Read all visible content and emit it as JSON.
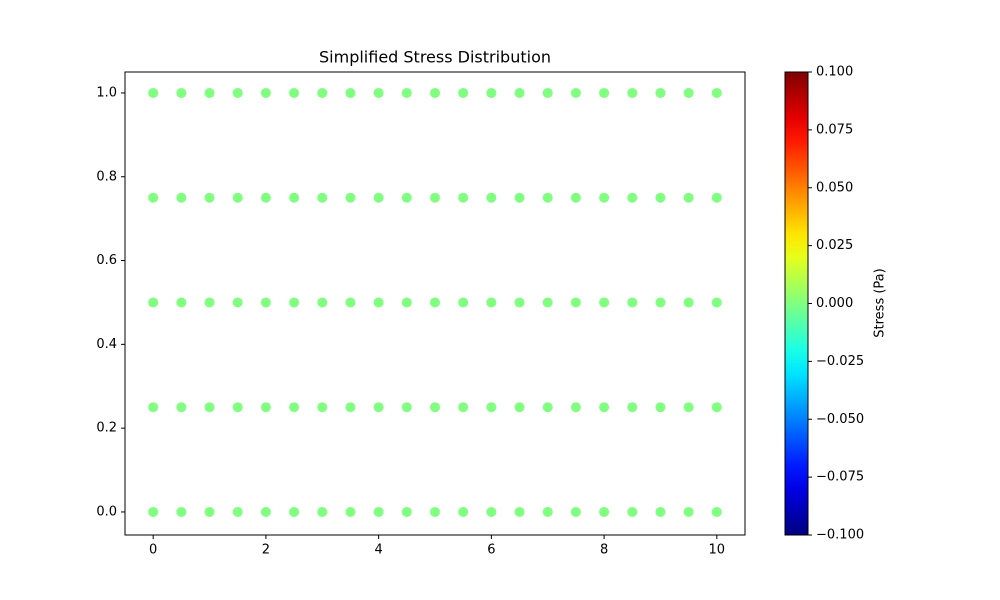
{
  "chart_data": {
    "type": "scatter",
    "title": "Simplified Stress Distribution",
    "colorbar_label": "Stress (Pa)",
    "colormap": "jet",
    "series": [
      {
        "x": [
          0,
          0.5,
          1,
          1.5,
          2,
          2.5,
          3,
          3.5,
          4,
          4.5,
          5,
          5.5,
          6,
          6.5,
          7,
          7.5,
          8,
          8.5,
          9,
          9.5,
          10
        ],
        "values": [
          0,
          0,
          0,
          0,
          0,
          0,
          0,
          0,
          0,
          0,
          0,
          0,
          0,
          0,
          0,
          0,
          0,
          0,
          0,
          0,
          0
        ],
        "c": [
          0,
          0,
          0,
          0,
          0,
          0,
          0,
          0,
          0,
          0,
          0,
          0,
          0,
          0,
          0,
          0,
          0,
          0,
          0,
          0,
          0
        ]
      },
      {
        "x": [
          0,
          0.5,
          1,
          1.5,
          2,
          2.5,
          3,
          3.5,
          4,
          4.5,
          5,
          5.5,
          6,
          6.5,
          7,
          7.5,
          8,
          8.5,
          9,
          9.5,
          10
        ],
        "values": [
          0.25,
          0.25,
          0.25,
          0.25,
          0.25,
          0.25,
          0.25,
          0.25,
          0.25,
          0.25,
          0.25,
          0.25,
          0.25,
          0.25,
          0.25,
          0.25,
          0.25,
          0.25,
          0.25,
          0.25,
          0.25
        ],
        "c": [
          0,
          0,
          0,
          0,
          0,
          0,
          0,
          0,
          0,
          0,
          0,
          0,
          0,
          0,
          0,
          0,
          0,
          0,
          0,
          0,
          0
        ]
      },
      {
        "x": [
          0,
          0.5,
          1,
          1.5,
          2,
          2.5,
          3,
          3.5,
          4,
          4.5,
          5,
          5.5,
          6,
          6.5,
          7,
          7.5,
          8,
          8.5,
          9,
          9.5,
          10
        ],
        "values": [
          0.5,
          0.5,
          0.5,
          0.5,
          0.5,
          0.5,
          0.5,
          0.5,
          0.5,
          0.5,
          0.5,
          0.5,
          0.5,
          0.5,
          0.5,
          0.5,
          0.5,
          0.5,
          0.5,
          0.5,
          0.5
        ],
        "c": [
          0,
          0,
          0,
          0,
          0,
          0,
          0,
          0,
          0,
          0,
          0,
          0,
          0,
          0,
          0,
          0,
          0,
          0,
          0,
          0,
          0
        ]
      },
      {
        "x": [
          0,
          0.5,
          1,
          1.5,
          2,
          2.5,
          3,
          3.5,
          4,
          4.5,
          5,
          5.5,
          6,
          6.5,
          7,
          7.5,
          8,
          8.5,
          9,
          9.5,
          10
        ],
        "values": [
          0.75,
          0.75,
          0.75,
          0.75,
          0.75,
          0.75,
          0.75,
          0.75,
          0.75,
          0.75,
          0.75,
          0.75,
          0.75,
          0.75,
          0.75,
          0.75,
          0.75,
          0.75,
          0.75,
          0.75,
          0.75
        ],
        "c": [
          0,
          0,
          0,
          0,
          0,
          0,
          0,
          0,
          0,
          0,
          0,
          0,
          0,
          0,
          0,
          0,
          0,
          0,
          0,
          0,
          0
        ]
      },
      {
        "x": [
          0,
          0.5,
          1,
          1.5,
          2,
          2.5,
          3,
          3.5,
          4,
          4.5,
          5,
          5.5,
          6,
          6.5,
          7,
          7.5,
          8,
          8.5,
          9,
          9.5,
          10
        ],
        "values": [
          1,
          1,
          1,
          1,
          1,
          1,
          1,
          1,
          1,
          1,
          1,
          1,
          1,
          1,
          1,
          1,
          1,
          1,
          1,
          1,
          1
        ],
        "c": [
          0,
          0,
          0,
          0,
          0,
          0,
          0,
          0,
          0,
          0,
          0,
          0,
          0,
          0,
          0,
          0,
          0,
          0,
          0,
          0,
          0
        ]
      }
    ],
    "xlim": [
      -0.5,
      10.5
    ],
    "xticks": [
      0,
      2,
      4,
      6,
      8,
      10
    ],
    "ylim": [
      -0.055,
      1.05
    ],
    "yticks": [
      {
        "value": 0,
        "label": "0.0"
      },
      0.2,
      0.4,
      0.6,
      0.8,
      {
        "value": 1,
        "label": "1.0"
      }
    ],
    "clim": [
      -0.1,
      0.1
    ],
    "cticks": [
      {
        "value": -0.1,
        "label": "−0.100"
      },
      {
        "value": -0.075,
        "label": "−0.075"
      },
      {
        "value": -0.05,
        "label": "−0.050"
      },
      {
        "value": -0.025,
        "label": "−0.025"
      },
      {
        "value": 0,
        "label": "0.000"
      },
      0.025,
      {
        "value": 0.05,
        "label": "0.050"
      },
      0.075,
      {
        "value": 0.1,
        "label": "0.100"
      }
    ],
    "grid": false
  }
}
